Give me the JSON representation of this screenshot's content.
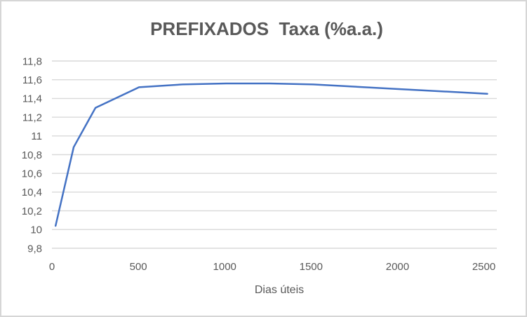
{
  "chart_data": {
    "type": "line",
    "title": "PREFIXADOS  Taxa (%a.a.)",
    "xlabel": "Dias úteis",
    "ylabel": "",
    "x": [
      21,
      126,
      252,
      504,
      756,
      1008,
      1260,
      1512,
      2016,
      2520
    ],
    "y": [
      10.04,
      10.88,
      11.3,
      11.52,
      11.55,
      11.56,
      11.56,
      11.55,
      11.5,
      11.45
    ],
    "xlim": [
      0,
      2575
    ],
    "ylim": [
      9.8,
      11.8
    ],
    "x_ticks": {
      "values": [
        0,
        500,
        1000,
        1500,
        2000,
        2500
      ],
      "labels": [
        "0",
        "500",
        "1000",
        "1500",
        "2000",
        "2500"
      ]
    },
    "y_ticks": {
      "values": [
        9.8,
        10,
        10.2,
        10.4,
        10.6,
        10.8,
        11,
        11.2,
        11.4,
        11.6,
        11.8
      ],
      "labels": [
        "9,8",
        "10",
        "10,2",
        "10,4",
        "10,6",
        "10,8",
        "11",
        "11,2",
        "11,4",
        "11,6",
        "11,8"
      ]
    },
    "grid": "horizontal",
    "legend": "none",
    "colors": {
      "line": "#4472C4",
      "grid": "#D9D9D9",
      "text": "#595959",
      "border": "#D6D6D6",
      "background": "#FFFFFF"
    }
  }
}
